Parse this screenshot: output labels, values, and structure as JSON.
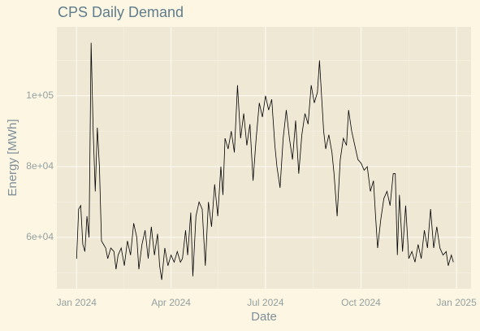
{
  "chart_data": {
    "type": "line",
    "title": "CPS Daily Demand",
    "x_label": "Date",
    "y_label": "Energy [MWh]",
    "x": [
      0,
      2,
      4,
      6,
      8,
      10,
      12,
      14,
      16,
      18,
      20,
      22,
      24,
      26,
      28,
      30,
      33,
      36,
      38,
      40,
      43,
      46,
      49,
      52,
      55,
      58,
      60,
      63,
      66,
      69,
      72,
      75,
      78,
      80,
      82,
      85,
      88,
      91,
      94,
      97,
      100,
      102,
      105,
      107,
      110,
      112,
      115,
      118,
      121,
      124,
      127,
      130,
      133,
      136,
      139,
      141,
      143,
      146,
      149,
      152,
      155,
      158,
      161,
      164,
      167,
      170,
      173,
      176,
      179,
      182,
      185,
      188,
      191,
      193,
      196,
      199,
      202,
      205,
      208,
      211,
      214,
      217,
      220,
      223,
      226,
      229,
      232,
      234,
      236,
      238,
      240,
      243,
      246,
      248,
      251,
      254,
      257,
      260,
      262,
      265,
      268,
      271,
      274,
      277,
      280,
      283,
      286,
      288,
      290,
      293,
      296,
      299,
      302,
      305,
      307,
      309,
      311,
      314,
      317,
      320,
      323,
      326,
      329,
      332,
      335,
      338,
      341,
      344,
      347,
      350,
      353,
      356,
      358,
      361,
      363
    ],
    "series": [
      {
        "name": "Energy",
        "color": "#000000",
        "values": [
          54000,
          68000,
          69000,
          58000,
          56000,
          66000,
          60000,
          115000,
          90000,
          73000,
          91000,
          80000,
          59000,
          58000,
          57000,
          54000,
          57000,
          56000,
          51000,
          55000,
          57000,
          52000,
          59000,
          55000,
          64000,
          60000,
          51000,
          58000,
          62000,
          54000,
          63000,
          55000,
          61000,
          52000,
          48000,
          57000,
          52000,
          55000,
          53000,
          56000,
          53000,
          54000,
          62000,
          55000,
          67000,
          49000,
          66000,
          70000,
          68000,
          52000,
          70000,
          63000,
          75000,
          66000,
          80000,
          72000,
          88000,
          85000,
          90000,
          84000,
          103000,
          88000,
          95000,
          86000,
          92000,
          76000,
          88000,
          98000,
          94000,
          100000,
          96000,
          99000,
          86000,
          80000,
          74000,
          88000,
          96000,
          88000,
          82000,
          93000,
          78000,
          89000,
          95000,
          92000,
          103000,
          98000,
          101000,
          110000,
          100000,
          90000,
          85000,
          89000,
          84000,
          78000,
          66000,
          82000,
          88000,
          86000,
          96000,
          90000,
          86000,
          82000,
          81000,
          79000,
          80000,
          73000,
          76000,
          66000,
          57000,
          65000,
          71000,
          73000,
          69000,
          78000,
          78000,
          55000,
          72000,
          56000,
          69000,
          54000,
          56000,
          53000,
          58000,
          54000,
          62000,
          57000,
          68000,
          57000,
          63000,
          57000,
          55000,
          56000,
          52000,
          55000,
          53000
        ]
      }
    ],
    "xlim": [
      -19,
      380
    ],
    "xticks": [
      {
        "value": 0,
        "label": "Jan 2024"
      },
      {
        "value": 91,
        "label": "Apr 2024"
      },
      {
        "value": 182,
        "label": "Jul 2024"
      },
      {
        "value": 274,
        "label": "Oct 2024"
      },
      {
        "value": 366,
        "label": "Jan 2025"
      }
    ],
    "ylim": [
      45500,
      119500
    ],
    "yticks": [
      {
        "value": 60000,
        "label": "6e+04"
      },
      {
        "value": 80000,
        "label": "8e+04"
      },
      {
        "value": 100000,
        "label": "1e+05"
      }
    ],
    "grid": true
  }
}
